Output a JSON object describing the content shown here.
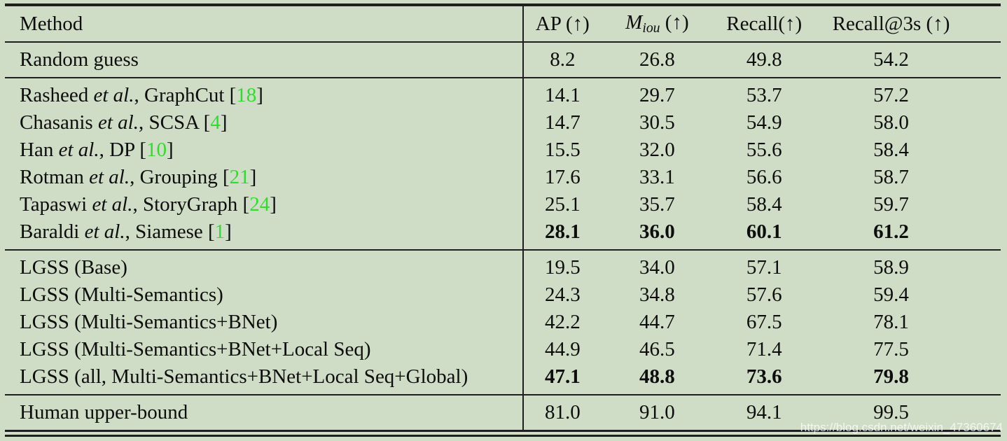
{
  "colors": {
    "background": "#cfdcc6",
    "rule": "#1f1f1f",
    "text": "#0d0d0d",
    "citation_green": "#2edd2e",
    "watermark_text": "rgba(255,255,255,0.78)"
  },
  "header": {
    "method": "Method",
    "ap": "AP (↑)",
    "miou_main": "M",
    "miou_sub": "iou",
    "miou_tail": " (↑)",
    "recall": "Recall(↑)",
    "recall_3s": "Recall@3s (↑)"
  },
  "groups": [
    {
      "rows": [
        {
          "method": {
            "pre": "Random guess"
          },
          "values": [
            "8.2",
            "26.8",
            "49.8",
            "54.2"
          ],
          "bold": false
        }
      ]
    },
    {
      "rows": [
        {
          "method": {
            "pre": "Rasheed ",
            "etal": "et al.",
            "mid": ", GraphCut [",
            "cite": "18",
            "post": "]"
          },
          "values": [
            "14.1",
            "29.7",
            "53.7",
            "57.2"
          ],
          "bold": false
        },
        {
          "method": {
            "pre": "Chasanis ",
            "etal": "et al.",
            "mid": ", SCSA [",
            "cite": "4",
            "post": "]"
          },
          "values": [
            "14.7",
            "30.5",
            "54.9",
            "58.0"
          ],
          "bold": false
        },
        {
          "method": {
            "pre": "Han ",
            "etal": "et al.",
            "mid": ", DP [",
            "cite": "10",
            "post": "]"
          },
          "values": [
            "15.5",
            "32.0",
            "55.6",
            "58.4"
          ],
          "bold": false
        },
        {
          "method": {
            "pre": "Rotman ",
            "etal": "et al.",
            "mid": ", Grouping [",
            "cite": "21",
            "post": "]"
          },
          "values": [
            "17.6",
            "33.1",
            "56.6",
            "58.7"
          ],
          "bold": false
        },
        {
          "method": {
            "pre": "Tapaswi ",
            "etal": "et al.",
            "mid": ", StoryGraph [",
            "cite": "24",
            "post": "]"
          },
          "values": [
            "25.1",
            "35.7",
            "58.4",
            "59.7"
          ],
          "bold": false
        },
        {
          "method": {
            "pre": "Baraldi ",
            "etal": "et al.",
            "mid": ", Siamese [",
            "cite": "1",
            "post": "]"
          },
          "values": [
            "28.1",
            "36.0",
            "60.1",
            "61.2"
          ],
          "bold": true
        }
      ]
    },
    {
      "rows": [
        {
          "method": {
            "pre": "LGSS (Base)"
          },
          "values": [
            "19.5",
            "34.0",
            "57.1",
            "58.9"
          ],
          "bold": false
        },
        {
          "method": {
            "pre": "LGSS (Multi-Semantics)"
          },
          "values": [
            "24.3",
            "34.8",
            "57.6",
            "59.4"
          ],
          "bold": false
        },
        {
          "method": {
            "pre": "LGSS (Multi-Semantics+BNet)"
          },
          "values": [
            "42.2",
            "44.7",
            "67.5",
            "78.1"
          ],
          "bold": false
        },
        {
          "method": {
            "pre": "LGSS (Multi-Semantics+BNet+Local Seq)"
          },
          "values": [
            "44.9",
            "46.5",
            "71.4",
            "77.5"
          ],
          "bold": false
        },
        {
          "method": {
            "pre": "LGSS (all, Multi-Semantics+BNet+Local Seq+Global)"
          },
          "values": [
            "47.1",
            "48.8",
            "73.6",
            "79.8"
          ],
          "bold": true
        }
      ]
    },
    {
      "rows": [
        {
          "method": {
            "pre": "Human upper-bound"
          },
          "values": [
            "81.0",
            "91.0",
            "94.1",
            "99.5"
          ],
          "bold": false
        }
      ]
    }
  ],
  "watermark": "https://blog.csdn.net/weixin_47360674"
}
